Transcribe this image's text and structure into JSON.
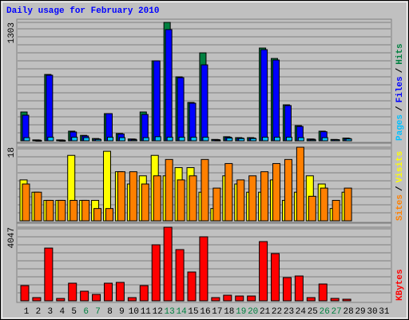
{
  "title": "Daily usage for February 2010",
  "legend_separator": "/",
  "categories": [
    "1",
    "2",
    "3",
    "4",
    "5",
    "6",
    "7",
    "8",
    "9",
    "10",
    "11",
    "12",
    "13",
    "14",
    "15",
    "16",
    "17",
    "18",
    "19",
    "20",
    "21",
    "22",
    "23",
    "24",
    "25",
    "26",
    "27",
    "28",
    "29",
    "30",
    "31"
  ],
  "category_colors": [
    "#000000",
    "#000000",
    "#000000",
    "#000000",
    "#000000",
    "#008040",
    "#008040",
    "#000000",
    "#000000",
    "#000000",
    "#000000",
    "#000000",
    "#008040",
    "#008040",
    "#000000",
    "#000000",
    "#000000",
    "#000000",
    "#008040",
    "#008040",
    "#000000",
    "#000000",
    "#000000",
    "#000000",
    "#000000",
    "#008040",
    "#008040",
    "#000000",
    "#000000",
    "#000000",
    "#000000"
  ],
  "chart_data": [
    {
      "type": "bar",
      "ylim": [
        0,
        1303
      ],
      "yticks": [
        1303
      ],
      "series": [
        {
          "name": "Hits",
          "color": "#008040",
          "values": [
            317,
            10,
            730,
            10,
            106,
            60,
            25,
            299,
            80,
            20,
            317,
            880,
            1303,
            704,
            422,
            968,
            15,
            45,
            35,
            35,
            1021,
            906,
            396,
            167,
            20,
            106,
            15,
            30,
            null,
            null,
            null
          ]
        },
        {
          "name": "Files",
          "color": "#0000ff",
          "values": [
            282,
            8,
            722,
            8,
            97,
            53,
            20,
            299,
            75,
            18,
            290,
            880,
            1224,
            695,
            414,
            836,
            13,
            40,
            30,
            30,
            1003,
            889,
            388,
            158,
            18,
            100,
            13,
            25,
            null,
            null,
            null
          ]
        },
        {
          "name": "Pages",
          "color": "#00c0ff",
          "values": [
            35,
            5,
            40,
            5,
            40,
            35,
            15,
            40,
            35,
            10,
            35,
            45,
            40,
            40,
            40,
            40,
            8,
            30,
            25,
            25,
            40,
            40,
            40,
            35,
            10,
            35,
            10,
            20,
            null,
            null,
            null
          ]
        }
      ]
    },
    {
      "type": "bar",
      "ylim": [
        0,
        18
      ],
      "yticks": [
        18
      ],
      "series": [
        {
          "name": "Visits",
          "color": "#ffff00",
          "values": [
            10,
            7,
            5,
            5,
            16,
            5,
            5,
            17,
            12,
            9,
            11,
            16,
            11,
            13,
            13,
            7,
            3,
            11,
            9,
            7,
            7,
            10,
            5,
            7,
            11,
            9,
            3,
            7,
            null,
            null,
            null
          ]
        },
        {
          "name": "Sites",
          "color": "#ff8000",
          "values": [
            9,
            7,
            5,
            5,
            5,
            5,
            3,
            3,
            12,
            12,
            9,
            11,
            15,
            10,
            11,
            15,
            8,
            14,
            10,
            11,
            12,
            14,
            15,
            18,
            6,
            8,
            5,
            8,
            null,
            null,
            null
          ]
        }
      ]
    },
    {
      "type": "bar",
      "ylim": [
        0,
        4047
      ],
      "yticks": [
        4047
      ],
      "series": [
        {
          "name": "KBytes",
          "color": "#ff0000",
          "values": [
            836,
            176,
            2900,
            130,
            968,
            528,
            352,
            968,
            1012,
            176,
            836,
            3080,
            4047,
            2816,
            1584,
            3520,
            176,
            308,
            264,
            264,
            3256,
            2596,
            1276,
            1364,
            176,
            924,
            132,
            88,
            null,
            null,
            null
          ]
        }
      ]
    }
  ]
}
